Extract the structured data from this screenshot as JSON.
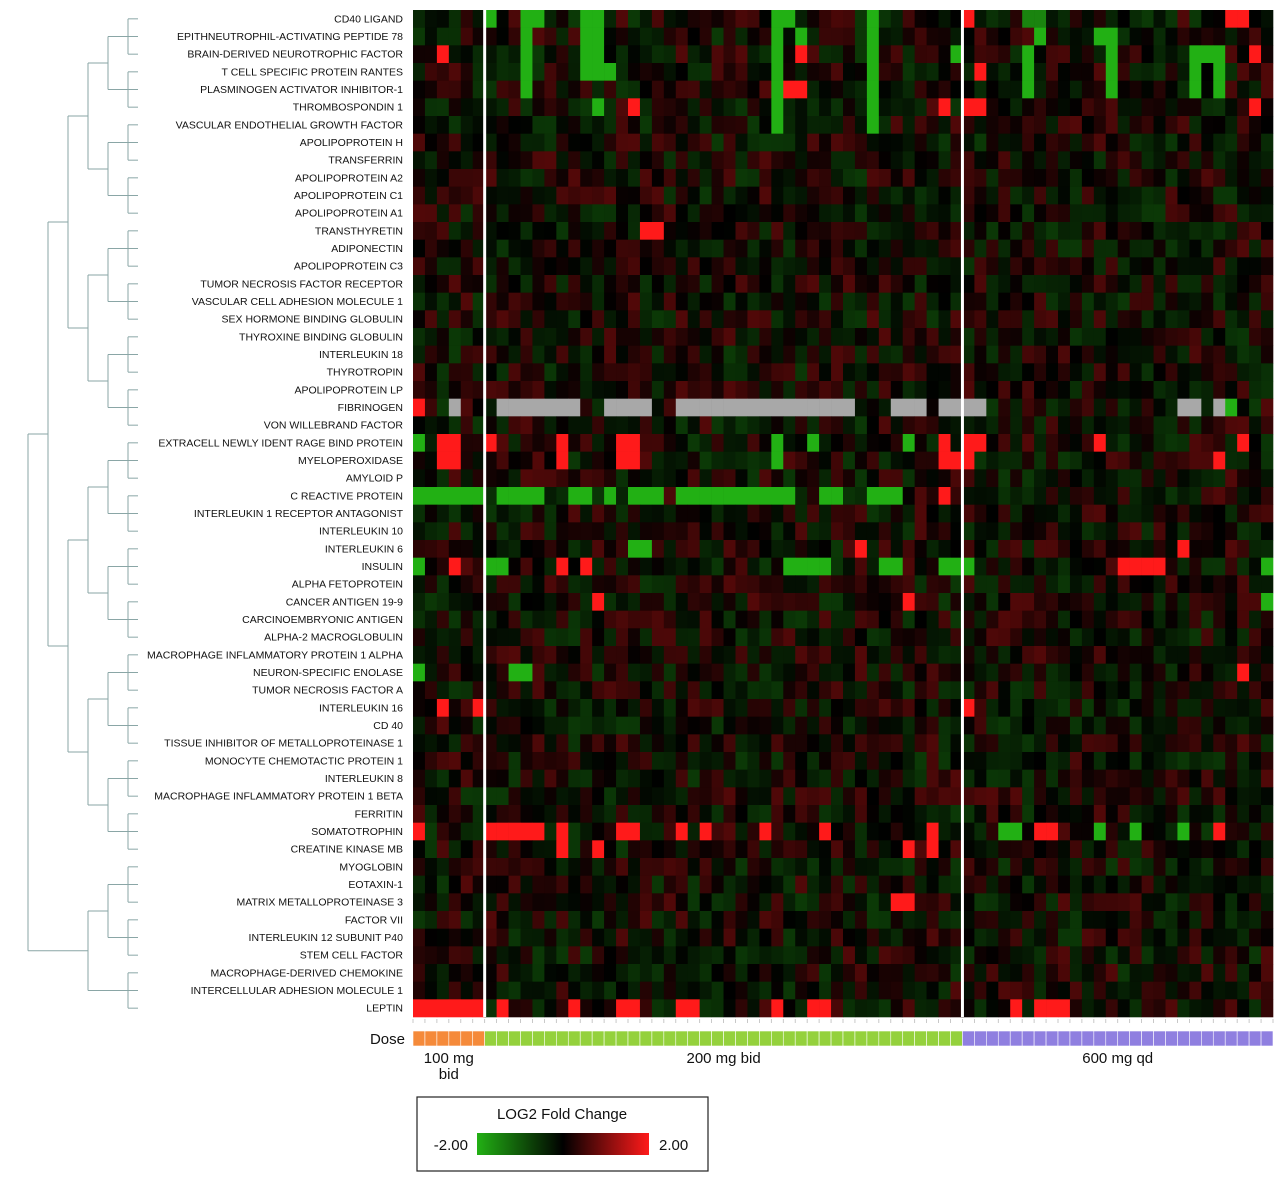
{
  "chart_data": {
    "type": "heatmap",
    "colorbar": {
      "title": "LOG2 Fold Change",
      "min_label": "-2.00",
      "max_label": "2.00",
      "min": -2.0,
      "max": 2.0,
      "colors": [
        "#22b014",
        "#000000",
        "#ff1a1a"
      ]
    },
    "missing_color": "#a8a8a8",
    "rows": [
      "CD40 LIGAND",
      "EPITHNEUTROPHIL-ACTIVATING PEPTIDE 78",
      "BRAIN-DERIVED NEUROTROPHIC FACTOR",
      "T CELL SPECIFIC PROTEIN RANTES",
      "PLASMINOGEN ACTIVATOR INHIBITOR-1",
      "THROMBOSPONDIN 1",
      "VASCULAR ENDOTHELIAL GROWTH FACTOR",
      "APOLIPOPROTEIN H",
      "TRANSFERRIN",
      "APOLIPOPROTEIN A2",
      "APOLIPOPROTEIN C1",
      "APOLIPOPROTEIN A1",
      "TRANSTHYRETIN",
      "ADIPONECTIN",
      "APOLIPOPROTEIN C3",
      "TUMOR NECROSIS FACTOR RECEPTOR",
      "VASCULAR CELL ADHESION MOLECULE 1",
      "SEX HORMONE BINDING GLOBULIN",
      "THYROXINE BINDING GLOBULIN",
      "INTERLEUKIN 18",
      "THYROTROPIN",
      "APOLIPOPROTEIN LP",
      "FIBRINOGEN",
      "VON WILLEBRAND FACTOR",
      "EXTRACELL NEWLY IDENT RAGE BIND PROTEIN",
      "MYELOPEROXIDASE",
      "AMYLOID P",
      "C REACTIVE PROTEIN",
      "INTERLEUKIN 1 RECEPTOR ANTAGONIST",
      "INTERLEUKIN 10",
      "INTERLEUKIN 6",
      "INSULIN",
      "ALPHA FETOPROTEIN",
      "CANCER ANTIGEN 19-9",
      "CARCINOEMBRYONIC ANTIGEN",
      "ALPHA-2 MACROGLOBULIN",
      "MACROPHAGE INFLAMMATORY PROTEIN 1 ALPHA",
      "NEURON-SPECIFIC ENOLASE",
      "TUMOR NECROSIS FACTOR A",
      "INTERLEUKIN 16",
      "CD 40",
      "TISSUE INHIBITOR OF METALLOPROTEINASE 1",
      "MONOCYTE CHEMOTACTIC PROTEIN 1",
      "INTERLEUKIN 8",
      "MACROPHAGE INFLAMMATORY PROTEIN 1 BETA",
      "FERRITIN",
      "SOMATOTROPHIN",
      "CREATINE KINASE MB",
      "MYOGLOBIN",
      "EOTAXIN-1",
      "MATRIX METALLOPROTEINASE 3",
      "FACTOR VII",
      "INTERLEUKIN 12 SUBUNIT P40",
      "STEM CELL FACTOR",
      "MACROPHAGE-DERIVED CHEMOKINE",
      "INTERCELLULAR ADHESION MOLECULE 1",
      "LEPTIN"
    ],
    "dose_label": "Dose",
    "groups": [
      {
        "name": "100 mg bid",
        "columns": 6,
        "color": "#f58a3a"
      },
      {
        "name": "200 mg bid",
        "columns": 40,
        "color": "#94d13c"
      },
      {
        "name": "600 mg qd",
        "columns": 26,
        "color": "#8f7fe0"
      }
    ],
    "missing_cells": {
      "FIBRINOGEN": [
        3,
        7,
        8,
        9,
        10,
        11,
        12,
        13,
        16,
        17,
        18,
        19,
        22,
        23,
        24,
        25,
        26,
        27,
        28,
        29,
        30,
        31,
        32,
        33,
        34,
        35,
        36,
        40,
        41,
        42,
        44,
        45,
        46,
        47,
        64,
        65,
        67
      ]
    },
    "strong_cells": {
      "CD40 LIGAND": {
        "6": -2,
        "9": -2,
        "10": -2,
        "14": -2,
        "15": -2,
        "30": -2,
        "31": -2,
        "38": -2,
        "46": 2,
        "51": -1.5,
        "52": -1.5,
        "68": 2,
        "69": 2
      },
      "EPITHNEUTROPHIL-ACTIVATING PEPTIDE 78": {
        "9": -2,
        "14": -2,
        "15": -2,
        "30": -2,
        "32": -2,
        "38": -2,
        "52": -2,
        "57": -2,
        "58": -2
      },
      "BRAIN-DERIVED NEUROTROPHIC FACTOR": {
        "2": 2,
        "9": -2,
        "14": -2,
        "15": -2,
        "30": -2,
        "32": 2,
        "38": -2,
        "45": -2,
        "51": -2,
        "58": -2,
        "65": -2,
        "66": -2,
        "67": -2,
        "70": 2
      },
      "T CELL SPECIFIC PROTEIN RANTES": {
        "9": -2,
        "14": -2,
        "15": -2,
        "16": -2,
        "30": -2,
        "38": -2,
        "47": 2,
        "51": -2,
        "58": -2,
        "65": -2,
        "67": -2
      },
      "PLASMINOGEN ACTIVATOR INHIBITOR-1": {
        "9": -2,
        "30": -2,
        "31": 2,
        "32": 2,
        "38": -2,
        "51": -2,
        "58": -2,
        "65": -2,
        "67": -2
      },
      "THROMBOSPONDIN 1": {
        "15": -2,
        "18": 2,
        "30": -2,
        "38": -2,
        "44": 2,
        "46": 2,
        "47": 2,
        "70": 2
      },
      "VASCULAR ENDOTHELIAL GROWTH FACTOR": {
        "30": -2,
        "38": -2
      },
      "TRANSTHYRETIN": {
        "19": 2,
        "20": 2
      },
      "FIBRINOGEN": {
        "0": 2,
        "68": -2
      },
      "EXTRACELL NEWLY IDENT RAGE BIND PROTEIN": {
        "0": -2,
        "2": 2,
        "3": 2,
        "6": 2,
        "12": 2,
        "17": 2,
        "18": 2,
        "30": -2,
        "33": -2,
        "41": -2,
        "44": 2,
        "46": 2,
        "47": 2,
        "57": 2,
        "69": 2
      },
      "MYELOPEROXIDASE": {
        "2": 2,
        "3": 2,
        "12": 2,
        "17": 2,
        "18": 2,
        "30": -2,
        "44": 2,
        "45": 2,
        "46": 2,
        "67": 2
      },
      "C REACTIVE PROTEIN": {
        "0": -2,
        "1": -2,
        "2": -2,
        "3": -2,
        "4": -2,
        "5": -2,
        "7": -2,
        "8": -2,
        "9": -2,
        "10": -2,
        "13": -2,
        "14": -2,
        "16": -2,
        "18": -2,
        "19": -2,
        "20": -2,
        "22": -2,
        "23": -2,
        "24": -2,
        "25": -2,
        "26": -2,
        "27": -2,
        "28": -2,
        "29": -2,
        "30": -2,
        "31": -2,
        "34": -2,
        "35": -2,
        "38": -2,
        "39": -2,
        "40": -2,
        "44": 2
      },
      "INTERLEUKIN 6": {
        "18": -2,
        "19": -2,
        "37": 2,
        "64": 2
      },
      "INSULIN": {
        "0": -2,
        "3": 2,
        "6": -2,
        "7": -2,
        "12": 2,
        "14": 2,
        "31": -2,
        "32": -2,
        "33": -2,
        "34": -2,
        "39": -2,
        "40": -2,
        "44": -2,
        "45": -2,
        "46": -2,
        "59": 2,
        "60": 2,
        "61": 2,
        "62": 2,
        "71": -2
      },
      "CANCER ANTIGEN 19-9": {
        "15": 2,
        "41": 2,
        "71": -2
      },
      "NEURON-SPECIFIC ENOLASE": {
        "0": -2,
        "8": -2,
        "9": -2,
        "69": 2
      },
      "INTERLEUKIN 16": {
        "2": 2,
        "5": 2,
        "46": 2
      },
      "SOMATOTROPHIN": {
        "0": 2,
        "6": 2,
        "7": 2,
        "8": 2,
        "9": 2,
        "10": 2,
        "12": 2,
        "17": 2,
        "18": 2,
        "22": 2,
        "24": 2,
        "29": 2,
        "34": 2,
        "43": 2,
        "49": -2,
        "50": -2,
        "52": 2,
        "53": 2,
        "57": -2,
        "60": -2,
        "64": -2,
        "67": 2
      },
      "CREATINE KINASE MB": {
        "12": 2,
        "15": 2,
        "41": 2,
        "43": 2
      },
      "MATRIX METALLOPROTEINASE 3": {
        "40": 2,
        "41": 2
      },
      "LEPTIN": {
        "0": 2,
        "1": 2,
        "2": 2,
        "3": 2,
        "4": 2,
        "5": 2,
        "7": 2,
        "13": 2,
        "17": 2,
        "18": 2,
        "22": 2,
        "23": 2,
        "30": 2,
        "33": 2,
        "34": 2,
        "50": 2,
        "52": 2,
        "53": 2,
        "54": 2
      }
    }
  }
}
